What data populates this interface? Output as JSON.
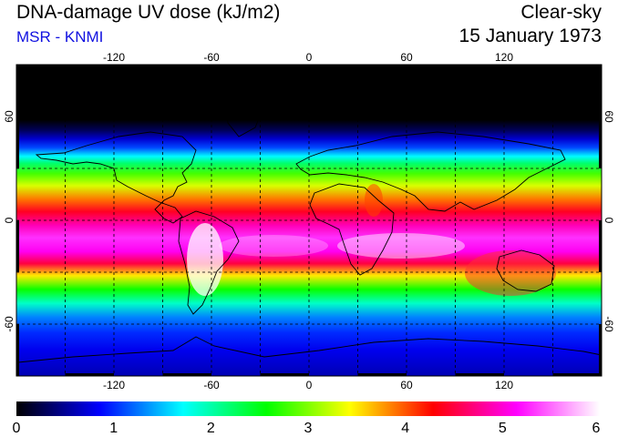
{
  "header": {
    "title": "DNA-damage UV dose (kJ/m2)",
    "source": "MSR - KNMI",
    "condition": "Clear-sky",
    "date": "15 January 1973"
  },
  "map": {
    "projection": "equirectangular",
    "lon_range": [
      -180,
      180
    ],
    "lat_range": [
      -90,
      90
    ],
    "lon_ticks": [
      "-120",
      "-60",
      "0",
      "60",
      "120"
    ],
    "lat_ticks": [
      "60",
      "0",
      "-60"
    ],
    "gridlines": "dashed every 30 degrees"
  },
  "colorbar": {
    "min": 0,
    "max": 6,
    "tick_labels": [
      "0",
      "1",
      "2",
      "3",
      "4",
      "5",
      "6"
    ],
    "colors": [
      "#000000",
      "#0000ff",
      "#00ffff",
      "#00ff00",
      "#ffff00",
      "#ff0000",
      "#ff00ff",
      "#ffffff"
    ]
  },
  "dose_profile": [
    {
      "lat": 90,
      "value": 0.0
    },
    {
      "lat": 58,
      "value": 0.0
    },
    {
      "lat": 52,
      "value": 0.3
    },
    {
      "lat": 47,
      "value": 0.7
    },
    {
      "lat": 42,
      "value": 1.1
    },
    {
      "lat": 37,
      "value": 1.7
    },
    {
      "lat": 33,
      "value": 2.2
    },
    {
      "lat": 27,
      "value": 2.8
    },
    {
      "lat": 20,
      "value": 3.3
    },
    {
      "lat": 12,
      "value": 3.9
    },
    {
      "lat": 5,
      "value": 4.4
    },
    {
      "lat": -3,
      "value": 4.9
    },
    {
      "lat": -10,
      "value": 5.3
    },
    {
      "lat": -18,
      "value": 5.1
    },
    {
      "lat": -25,
      "value": 4.5
    },
    {
      "lat": -32,
      "value": 3.5
    },
    {
      "lat": -40,
      "value": 2.6
    },
    {
      "lat": -48,
      "value": 1.9
    },
    {
      "lat": -56,
      "value": 1.3
    },
    {
      "lat": -65,
      "value": 1.0
    },
    {
      "lat": -75,
      "value": 0.8
    },
    {
      "lat": -90,
      "value": 0.6
    }
  ]
}
